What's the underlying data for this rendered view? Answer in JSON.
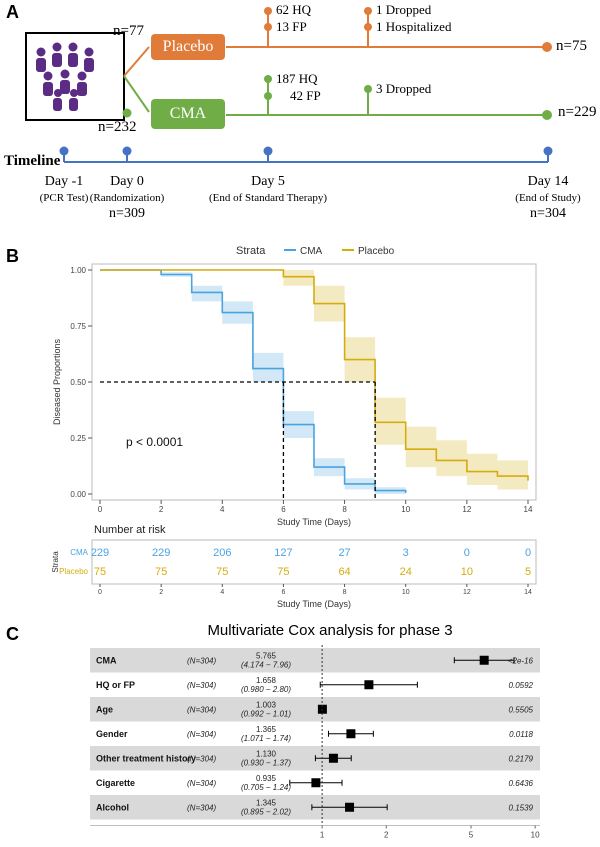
{
  "panel_a": {
    "letter": "A",
    "placebo": {
      "label": "Placebo",
      "n_start": "n=77",
      "n_end": "n=75",
      "color": "#E07B39",
      "events_day5": [
        "62 HQ",
        "13 FP"
      ],
      "events_day14": [
        "1 Dropped",
        "1 Hospitalized"
      ]
    },
    "cma": {
      "label": "CMA",
      "n_start": "n=232",
      "n_end": "n=229",
      "color": "#70AD47",
      "events_day5": [
        "187 HQ",
        "42 FP"
      ],
      "events_day14": [
        "3 Dropped"
      ]
    },
    "timeline": {
      "label": "Timeline",
      "color": "#4472C4",
      "points": [
        {
          "day": "Day -1",
          "desc": "(PCR Test)",
          "n": ""
        },
        {
          "day": "Day 0",
          "desc": "(Randomization)",
          "n": "n=309"
        },
        {
          "day": "Day 5",
          "desc": "(End of Standard Therapy)",
          "n": ""
        },
        {
          "day": "Day 14",
          "desc": "(End of Study)",
          "n": "n=304"
        }
      ]
    }
  },
  "panel_b": {
    "letter": "B",
    "legend_title": "Strata",
    "risk_table_title": "Number at risk",
    "risk_table_ylabel": "Strata",
    "pvalue": "p < 0.0001",
    "colors": {
      "CMA": "#4AA3DF",
      "Placebo": "#D4AC0D"
    }
  },
  "panel_c": {
    "letter": "C",
    "title": "Multivariate Cox analysis for phase 3",
    "x_ticks": [
      "1",
      "2",
      "5",
      "10"
    ]
  },
  "chart_data": [
    {
      "type": "line",
      "title": "",
      "xlabel": "Study Time (Days)",
      "ylabel": "Diseased Proportions",
      "xlim": [
        0,
        14
      ],
      "ylim": [
        0,
        1
      ],
      "x_ticks": [
        0,
        2,
        4,
        6,
        8,
        10,
        12,
        14
      ],
      "y_ticks": [
        "0.00",
        "0.25",
        "0.50",
        "0.75",
        "1.00"
      ],
      "median_line": 0.5,
      "step": true,
      "series": [
        {
          "name": "CMA",
          "x": [
            0,
            2,
            3,
            4,
            5,
            6,
            7,
            8,
            9,
            10
          ],
          "y": [
            1.0,
            0.98,
            0.9,
            0.81,
            0.56,
            0.31,
            0.12,
            0.045,
            0.015,
            0.005
          ],
          "ci_lower": [
            1.0,
            0.97,
            0.86,
            0.76,
            0.5,
            0.25,
            0.08,
            0.02,
            0.0,
            0.0
          ],
          "ci_upper": [
            1.0,
            0.99,
            0.93,
            0.86,
            0.63,
            0.37,
            0.16,
            0.07,
            0.03,
            0.01
          ]
        },
        {
          "name": "Placebo",
          "x": [
            0,
            6,
            7,
            8,
            9,
            10,
            11,
            12,
            13,
            14
          ],
          "y": [
            1.0,
            0.97,
            0.85,
            0.6,
            0.32,
            0.2,
            0.15,
            0.1,
            0.08,
            0.06
          ],
          "ci_lower": [
            1.0,
            0.93,
            0.77,
            0.5,
            0.22,
            0.12,
            0.08,
            0.04,
            0.02,
            0.01
          ],
          "ci_upper": [
            1.0,
            1.0,
            0.93,
            0.7,
            0.43,
            0.3,
            0.24,
            0.18,
            0.15,
            0.12
          ]
        }
      ]
    },
    {
      "type": "table",
      "title": "Number at risk",
      "xlabel": "Study Time (Days)",
      "x": [
        0,
        2,
        4,
        6,
        8,
        10,
        12,
        14
      ],
      "series": [
        {
          "name": "CMA",
          "values": [
            "229",
            "229",
            "206",
            "127",
            "27",
            "3",
            "0",
            "0"
          ]
        },
        {
          "name": "Placebo",
          "values": [
            "75",
            "75",
            "75",
            "75",
            "64",
            "24",
            "10",
            "5"
          ]
        }
      ]
    },
    {
      "type": "scatter",
      "title": "Multivariate Cox analysis for phase 3",
      "x_scale": "log",
      "xlim": [
        0.5,
        12
      ],
      "x_ticks": [
        1,
        2,
        5,
        10
      ],
      "rows": [
        {
          "name": "CMA",
          "n": "(N=304)",
          "hr": 5.765,
          "hr_label": "5.765",
          "ci_label": "(4.174 − 7.96)",
          "ci": [
            4.174,
            7.96
          ],
          "p": "<2e-16"
        },
        {
          "name": "HQ or FP",
          "n": "(N=304)",
          "hr": 1.658,
          "hr_label": "1.658",
          "ci_label": "(0.980 − 2.80)",
          "ci": [
            0.98,
            2.8
          ],
          "p": "0.0592"
        },
        {
          "name": "Age",
          "n": "(N=304)",
          "hr": 1.003,
          "hr_label": "1.003",
          "ci_label": "(0.992 − 1.01)",
          "ci": [
            0.992,
            1.01
          ],
          "p": "0.5505"
        },
        {
          "name": "Gender",
          "n": "(N=304)",
          "hr": 1.365,
          "hr_label": "1.365",
          "ci_label": "(1.071 − 1.74)",
          "ci": [
            1.071,
            1.74
          ],
          "p": "0.0118"
        },
        {
          "name": "Other treatment history",
          "n": "(N=304)",
          "hr": 1.13,
          "hr_label": "1.130",
          "ci_label": "(0.930 − 1.37)",
          "ci": [
            0.93,
            1.37
          ],
          "p": "0.2179"
        },
        {
          "name": "Cigarette",
          "n": "(N=304)",
          "hr": 0.935,
          "hr_label": "0.935",
          "ci_label": "(0.705 − 1.24)",
          "ci": [
            0.705,
            1.24
          ],
          "p": "0.6436"
        },
        {
          "name": "Alcohol",
          "n": "(N=304)",
          "hr": 1.345,
          "hr_label": "1.345",
          "ci_label": "(0.895 − 2.02)",
          "ci": [
            0.895,
            2.02
          ],
          "p": "0.1539"
        }
      ]
    }
  ]
}
